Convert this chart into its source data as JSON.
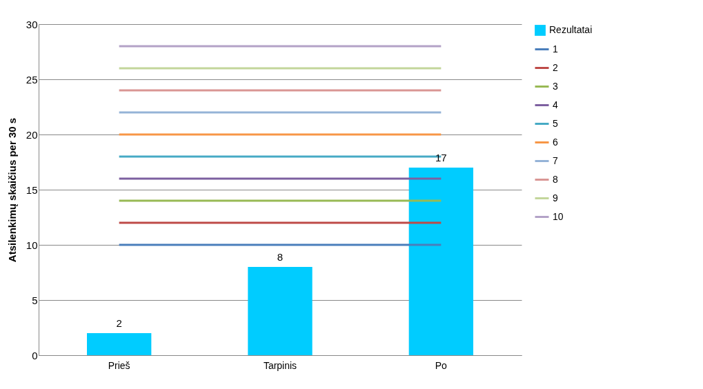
{
  "chart_data": {
    "type": "bar",
    "ylabel": "Atsilenkimų skaičius per 30 s",
    "categories": [
      "Prieš",
      "Tarpinis",
      "Po"
    ],
    "series": [
      {
        "name": "Rezultatai",
        "color": "#00ccff",
        "values": [
          2,
          8,
          17
        ],
        "value_labels": [
          "2",
          "8",
          "17"
        ]
      },
      {
        "name": "1",
        "type": "line",
        "color": "#4a7ebb",
        "values": [
          10,
          10,
          10
        ]
      },
      {
        "name": "2",
        "type": "line",
        "color": "#be4b48",
        "values": [
          12,
          12,
          12
        ]
      },
      {
        "name": "3",
        "type": "line",
        "color": "#98b954",
        "values": [
          14,
          14,
          14
        ]
      },
      {
        "name": "4",
        "type": "line",
        "color": "#7d60a0",
        "values": [
          16,
          16,
          16
        ]
      },
      {
        "name": "5",
        "type": "line",
        "color": "#46aac5",
        "values": [
          18,
          18,
          18
        ]
      },
      {
        "name": "6",
        "type": "line",
        "color": "#f79646",
        "values": [
          20,
          20,
          20
        ]
      },
      {
        "name": "7",
        "type": "line",
        "color": "#95b3d7",
        "values": [
          22,
          22,
          22
        ]
      },
      {
        "name": "8",
        "type": "line",
        "color": "#d99694",
        "values": [
          24,
          24,
          24
        ]
      },
      {
        "name": "9",
        "type": "line",
        "color": "#c3d69b",
        "values": [
          26,
          26,
          26
        ]
      },
      {
        "name": "10",
        "type": "line",
        "color": "#b3a2c7",
        "values": [
          28,
          28,
          28
        ]
      }
    ],
    "ylim": [
      0,
      30
    ],
    "yticks": [
      0,
      5,
      10,
      15,
      20,
      25,
      30
    ],
    "grid": "y",
    "legend": "right"
  }
}
